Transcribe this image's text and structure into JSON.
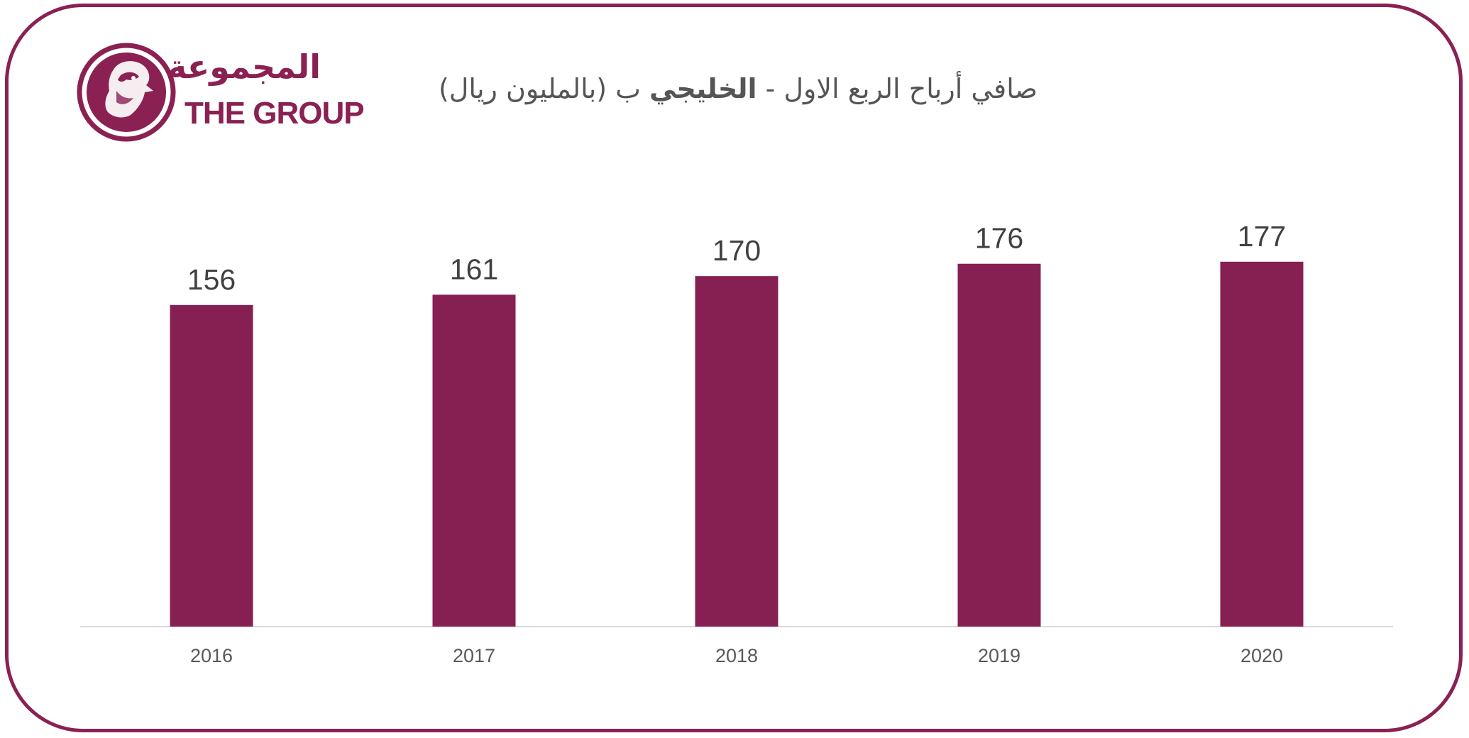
{
  "logo": {
    "arabic": "المجموعة",
    "english": "THE GROUP"
  },
  "colors": {
    "accent": "#8a2152",
    "bar": "#862052",
    "text": "#404040",
    "axis": "#d9d9d9"
  },
  "title": {
    "part1": "صافي أرباح الربع الاول -",
    "part2_bold": "الخليجي",
    "part3": "ب (بالمليون ريال)"
  },
  "chart_data": {
    "type": "bar",
    "categories": [
      "2016",
      "2017",
      "2018",
      "2019",
      "2020"
    ],
    "values": [
      156,
      161,
      170,
      176,
      177
    ],
    "data_labels": [
      "156",
      "161",
      "170",
      "176",
      "177"
    ],
    "xlabel": "",
    "ylabel": "",
    "ylim": [
      0,
      200
    ],
    "grid": false,
    "legend": "none"
  }
}
